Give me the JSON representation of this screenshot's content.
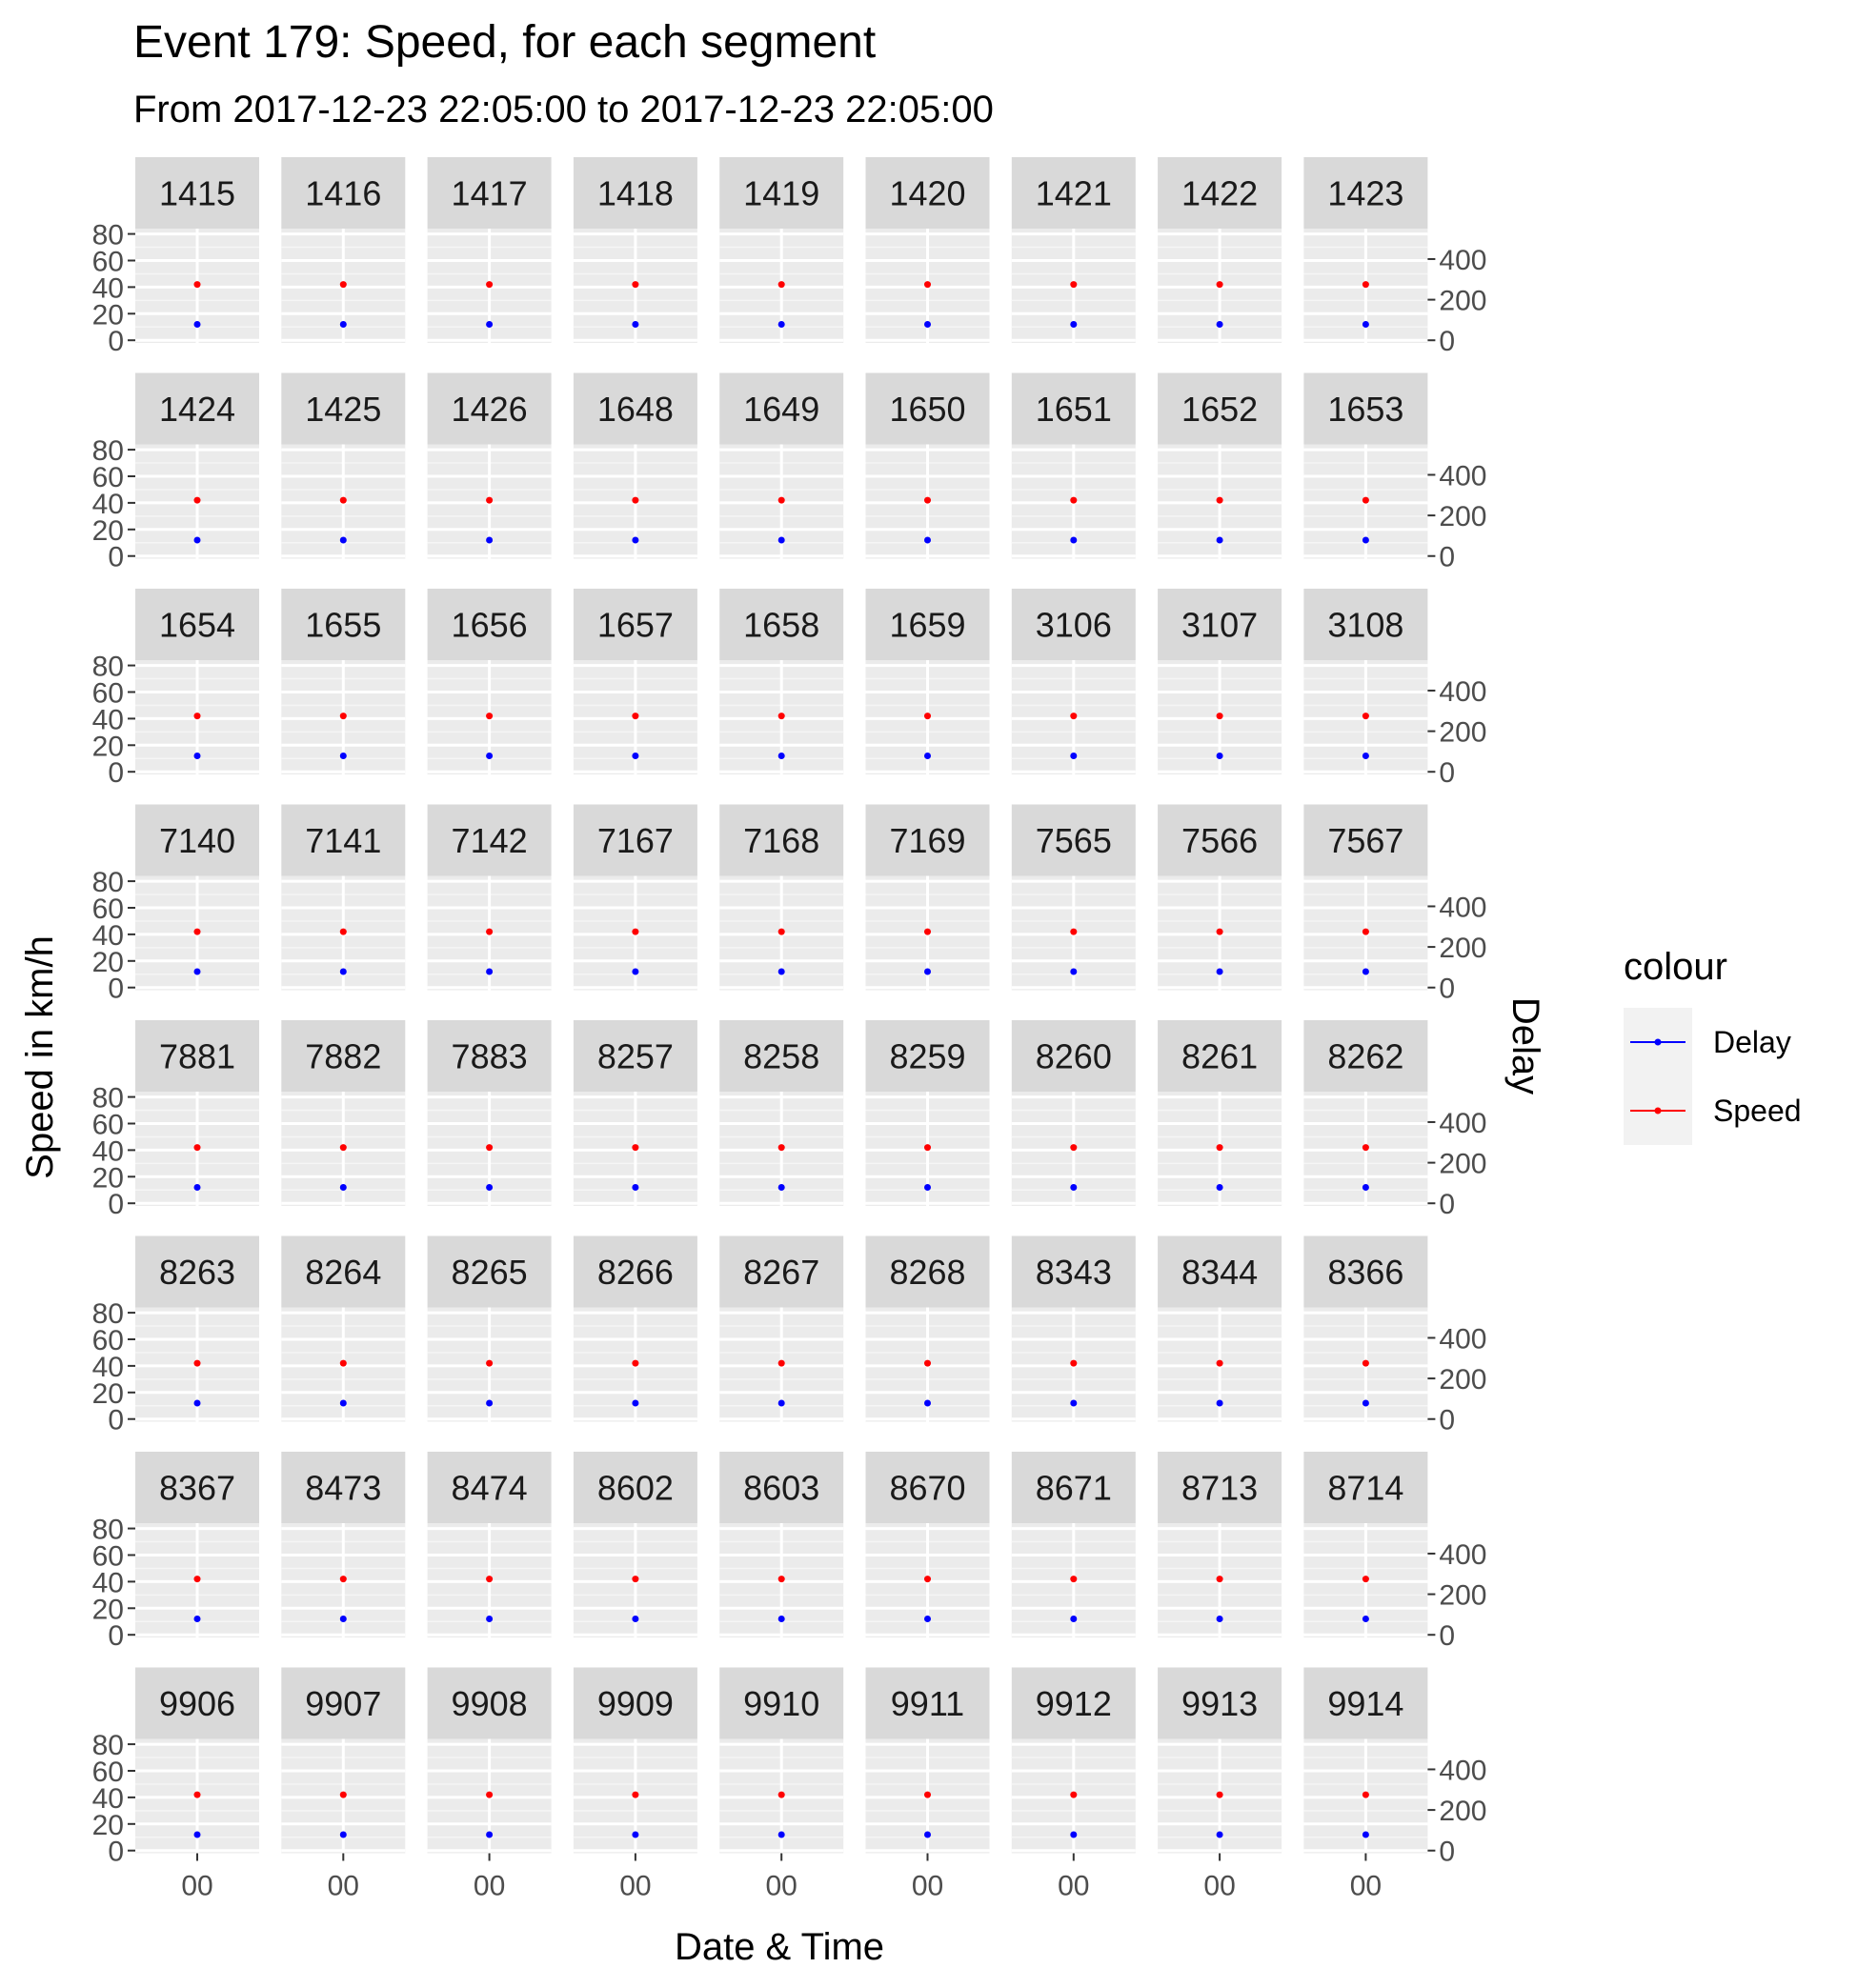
{
  "chart_data": {
    "type": "scatter",
    "title": "Event 179: Speed, for each segment",
    "subtitle": "From 2017-12-23 22:05:00 to 2017-12-23 22:05:00",
    "xlabel": "Date & Time",
    "ylabel": "Speed in km/h",
    "y2label": "Delay",
    "x_tick_label": "00",
    "y_ticks": [
      0,
      20,
      40,
      60,
      80
    ],
    "ylim": [
      -2,
      84
    ],
    "y2_ticks": [
      0,
      200,
      400
    ],
    "y2lim": [
      -13,
      550
    ],
    "grid": true,
    "legend": {
      "title": "colour",
      "position": "right",
      "entries": [
        {
          "name": "Delay",
          "color": "#0000ff"
        },
        {
          "name": "Speed",
          "color": "#ff0000"
        }
      ]
    },
    "panels": [
      "1415",
      "1416",
      "1417",
      "1418",
      "1419",
      "1420",
      "1421",
      "1422",
      "1423",
      "1424",
      "1425",
      "1426",
      "1648",
      "1649",
      "1650",
      "1651",
      "1652",
      "1653",
      "1654",
      "1655",
      "1656",
      "1657",
      "1658",
      "1659",
      "3106",
      "3107",
      "3108",
      "7140",
      "7141",
      "7142",
      "7167",
      "7168",
      "7169",
      "7565",
      "7566",
      "7567",
      "7881",
      "7882",
      "7883",
      "8257",
      "8258",
      "8259",
      "8260",
      "8261",
      "8262",
      "8263",
      "8264",
      "8265",
      "8266",
      "8267",
      "8268",
      "8343",
      "8344",
      "8366",
      "8367",
      "8473",
      "8474",
      "8602",
      "8603",
      "8670",
      "8671",
      "8713",
      "8714",
      "9906",
      "9907",
      "9908",
      "9909",
      "9910",
      "9911",
      "9912",
      "9913",
      "9914"
    ],
    "series": [
      {
        "name": "Speed",
        "color": "#ff0000",
        "value_each_panel": 42
      },
      {
        "name": "Delay",
        "color": "#0000ff",
        "value_each_panel": 12
      }
    ]
  }
}
